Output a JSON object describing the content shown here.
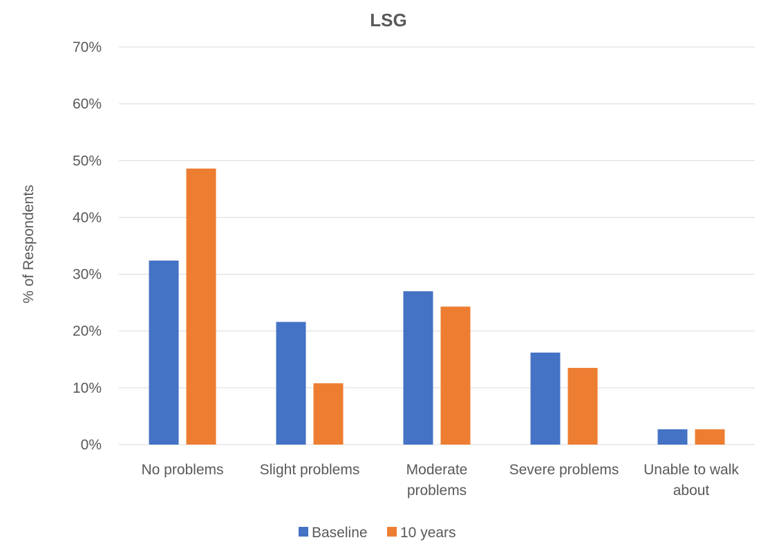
{
  "chart_data": {
    "type": "bar",
    "title": "LSG",
    "xlabel": "",
    "ylabel": "% of Respondents",
    "ylim": [
      0,
      70
    ],
    "yticks": [
      "0%",
      "10%",
      "20%",
      "30%",
      "40%",
      "50%",
      "60%",
      "70%"
    ],
    "categories": [
      [
        "No problems"
      ],
      [
        "Slight problems"
      ],
      [
        "Moderate",
        "problems"
      ],
      [
        "Severe problems"
      ],
      [
        "Unable to walk",
        "about"
      ]
    ],
    "series": [
      {
        "name": "Baseline",
        "color": "#4472c4",
        "values": [
          32.4,
          21.6,
          27.0,
          16.2,
          2.7
        ]
      },
      {
        "name": "10 years",
        "color": "#ed7d31",
        "values": [
          48.6,
          10.8,
          24.3,
          13.5,
          2.7
        ]
      }
    ],
    "grid": true,
    "legend_position": "bottom"
  }
}
